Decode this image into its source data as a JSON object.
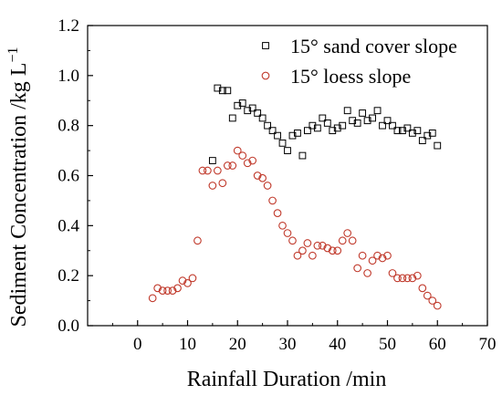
{
  "chart_data": {
    "type": "scatter",
    "xlabel": "Rainfall Duration /min",
    "ylabel": "Sediment Concentration /kg L",
    "ylabel_superscript": "−1",
    "xlim": [
      -10,
      70
    ],
    "ylim": [
      0.0,
      1.2
    ],
    "xticks": [
      "0",
      "10",
      "20",
      "30",
      "40",
      "50",
      "60",
      "70"
    ],
    "yticks": [
      "0.0",
      "0.2",
      "0.4",
      "0.6",
      "0.8",
      "1.0",
      "1.2"
    ],
    "legend_position": "top-right",
    "grid": false,
    "series": [
      {
        "name": "15° sand cover slope",
        "marker": "square",
        "color": "#000000",
        "x": [
          15,
          16,
          17,
          18,
          19,
          20,
          21,
          22,
          23,
          24,
          25,
          26,
          27,
          28,
          29,
          30,
          31,
          32,
          33,
          34,
          35,
          36,
          37,
          38,
          39,
          40,
          41,
          42,
          43,
          44,
          45,
          46,
          47,
          48,
          49,
          50,
          51,
          52,
          53,
          54,
          55,
          56,
          57,
          58,
          59,
          60
        ],
        "y": [
          0.66,
          0.95,
          0.94,
          0.94,
          0.83,
          0.88,
          0.89,
          0.86,
          0.87,
          0.85,
          0.83,
          0.8,
          0.78,
          0.76,
          0.73,
          0.7,
          0.76,
          0.77,
          0.68,
          0.78,
          0.8,
          0.79,
          0.83,
          0.81,
          0.78,
          0.79,
          0.8,
          0.86,
          0.82,
          0.81,
          0.85,
          0.82,
          0.83,
          0.86,
          0.8,
          0.82,
          0.8,
          0.78,
          0.78,
          0.79,
          0.77,
          0.78,
          0.74,
          0.76,
          0.77,
          0.72
        ]
      },
      {
        "name": "15° loess slope",
        "marker": "circle",
        "color": "#c0392b",
        "x": [
          3,
          4,
          5,
          6,
          7,
          8,
          9,
          10,
          11,
          12,
          13,
          14,
          15,
          16,
          17,
          18,
          19,
          20,
          21,
          22,
          23,
          24,
          25,
          26,
          27,
          28,
          29,
          30,
          31,
          32,
          33,
          34,
          35,
          36,
          37,
          38,
          39,
          40,
          41,
          42,
          43,
          44,
          45,
          46,
          47,
          48,
          49,
          50,
          51,
          52,
          53,
          54,
          55,
          56,
          57,
          58,
          59,
          60
        ],
        "y": [
          0.11,
          0.15,
          0.14,
          0.14,
          0.14,
          0.15,
          0.18,
          0.17,
          0.19,
          0.34,
          0.62,
          0.62,
          0.56,
          0.62,
          0.57,
          0.64,
          0.64,
          0.7,
          0.68,
          0.65,
          0.66,
          0.6,
          0.59,
          0.56,
          0.5,
          0.45,
          0.4,
          0.37,
          0.34,
          0.28,
          0.3,
          0.33,
          0.28,
          0.32,
          0.32,
          0.31,
          0.3,
          0.3,
          0.34,
          0.37,
          0.34,
          0.23,
          0.28,
          0.21,
          0.26,
          0.28,
          0.27,
          0.28,
          0.21,
          0.19,
          0.19,
          0.19,
          0.19,
          0.2,
          0.15,
          0.12,
          0.1,
          0.08
        ]
      }
    ]
  }
}
